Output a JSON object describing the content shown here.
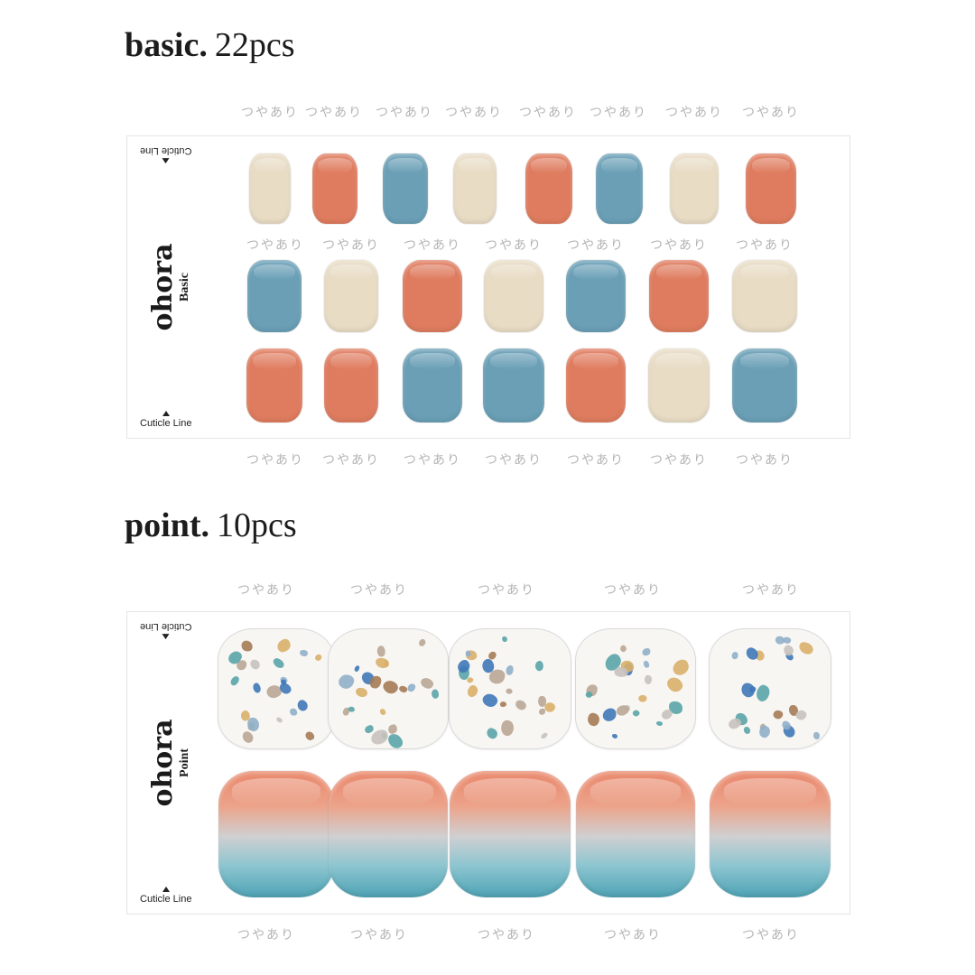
{
  "basic": {
    "title": "basic.",
    "count": "22pcs",
    "gloss_label": "つやあり",
    "brand": "ohora",
    "subtitle": "Basic",
    "cuticle_label": "Cuticle Line",
    "rows": [
      [
        "beige",
        "coral",
        "blue",
        "beige",
        "coral",
        "blue",
        "beige",
        "coral"
      ],
      [
        "blue",
        "beige",
        "coral",
        "beige",
        "blue",
        "coral",
        "beige"
      ],
      [
        "coral",
        "coral",
        "blue",
        "blue",
        "coral",
        "beige",
        "blue"
      ]
    ]
  },
  "point": {
    "title": "point.",
    "count": "10pcs",
    "gloss_label": "つやあり",
    "brand": "ohora",
    "subtitle": "Point",
    "cuticle_label": "Cuticle Line",
    "rows": [
      [
        "terrazzo",
        "terrazzo",
        "terrazzo",
        "terrazzo",
        "terrazzo"
      ],
      [
        "gradient",
        "gradient",
        "gradient",
        "gradient",
        "gradient"
      ]
    ]
  },
  "colors": {
    "beige": "#e8dcc5",
    "coral": "#df7c5f",
    "blue": "#6a9fb6",
    "terrazzo_chips": [
      "#3f78b8",
      "#8fb0c9",
      "#d8b06a",
      "#b9a795",
      "#5aa5a8",
      "#c7c2bd",
      "#a57b55"
    ]
  }
}
